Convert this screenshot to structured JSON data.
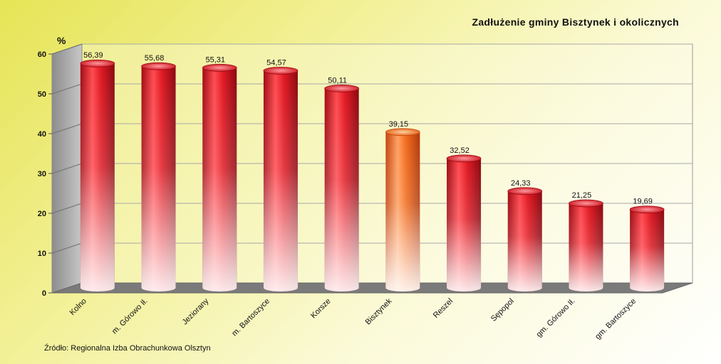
{
  "chart_data": {
    "type": "bar",
    "title": "Zadłużenie gminy Bisztynek i okolicznych",
    "ylabel": "%",
    "xlabel": "",
    "ylim": [
      0,
      60
    ],
    "yticks": [
      0,
      10,
      20,
      30,
      40,
      50,
      60
    ],
    "grid": true,
    "categories": [
      "Kolno",
      "m. Górowo Ił.",
      "Jeziorany",
      "m. Bartoszyce",
      "Korsze",
      "Bisztynek",
      "Reszel",
      "Sępopol",
      "gm. Górowo Ił.",
      "gm. Bartoszyce"
    ],
    "values": [
      56.39,
      55.68,
      55.31,
      54.57,
      50.11,
      39.15,
      32.52,
      24.33,
      21.25,
      19.69
    ],
    "value_labels": [
      "56,39",
      "55,68",
      "55,31",
      "54,57",
      "50,11",
      "39,15",
      "32,52",
      "24,33",
      "21,25",
      "19,69"
    ],
    "highlight_category": "Bisztynek",
    "colors": {
      "bar": "#d8141e",
      "highlight": "#f26a1b",
      "floor": "#7a7a7a",
      "wall": "#9a9a9a"
    }
  },
  "source": "Źródło: Regionalna Izba Obrachunkowa Olsztyn"
}
